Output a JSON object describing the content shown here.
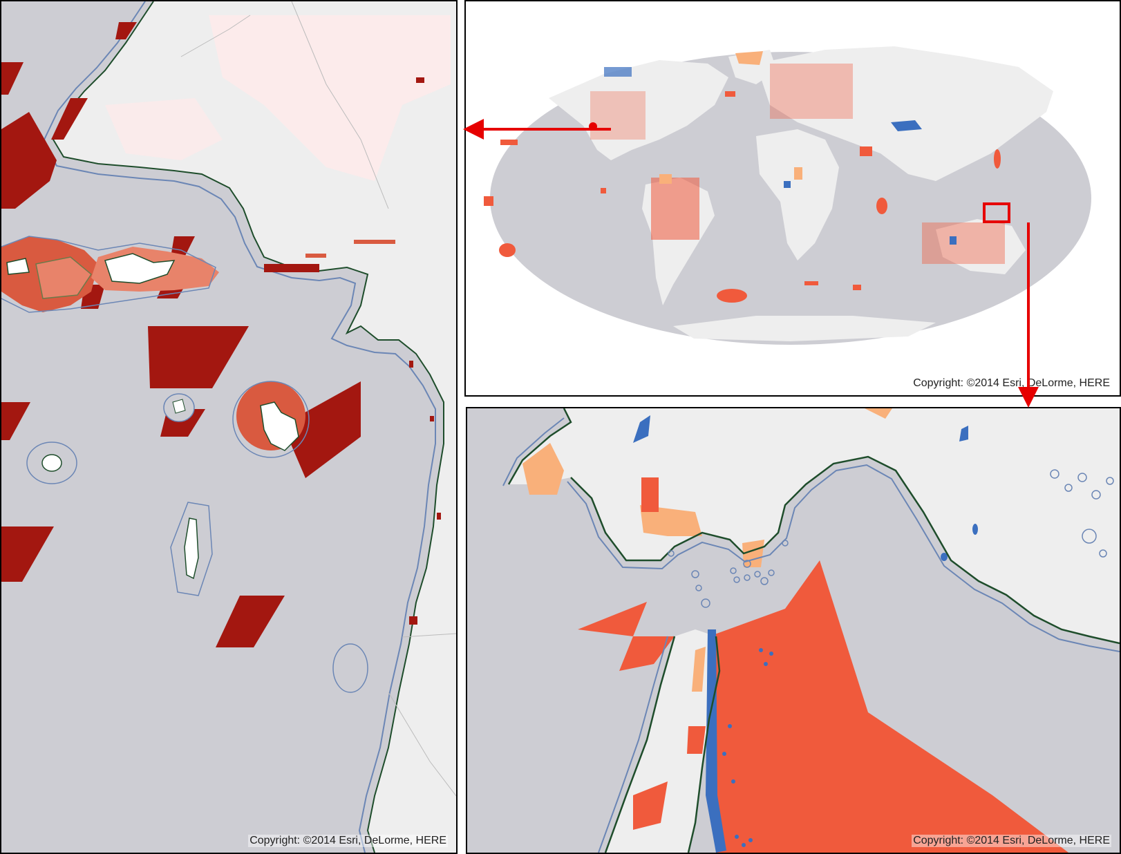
{
  "panels": {
    "left": {
      "copyright": "Copyright: ©2014 Esri, DeLorme, HERE"
    },
    "world": {
      "copyright": "Copyright: ©2014 Esri, DeLorme, HERE"
    },
    "inset": {
      "copyright": "Copyright: ©2014 Esri, DeLorme, HERE"
    }
  },
  "colors": {
    "ocean": "#cdcdd3",
    "land": "#eeeeee",
    "land_tint": "#fdeaea",
    "dark_red": "#a31710",
    "mid_red": "#d95a40",
    "salmon": "#e8836a",
    "orange": "#f05a3c",
    "light_orange": "#f9b07a",
    "blue": "#3b6fbf",
    "coast_blue": "#6b86b5",
    "coast_green": "#1e4d2b",
    "arrow_red": "#e60000"
  }
}
